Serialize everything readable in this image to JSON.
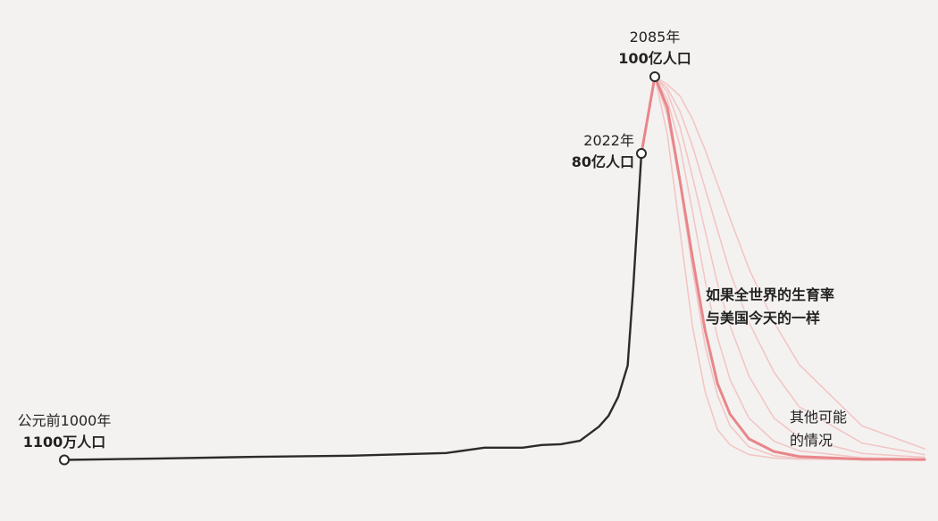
{
  "chart_data": {
    "type": "line",
    "xlim": [
      -1000,
      2300
    ],
    "ylim": [
      0,
      100
    ],
    "series": [
      {
        "color": "#f2c6c6",
        "x": [
          2085,
          2095,
          2105,
          2115,
          2125,
          2135,
          2145,
          2160,
          2180,
          2200,
          2250,
          2300
        ],
        "values": [
          100,
          85,
          60,
          35,
          18,
          8,
          4,
          1.5,
          0.6,
          0.3,
          0.2,
          0.2
        ]
      },
      {
        "color": "#f2c6c6",
        "x": [
          2085,
          2095,
          2105,
          2115,
          2125,
          2135,
          2145,
          2160,
          2180,
          2200,
          2250,
          2300
        ],
        "values": [
          100,
          90,
          72,
          50,
          30,
          17,
          9,
          3.5,
          1.2,
          0.5,
          0.3,
          0.2
        ]
      },
      {
        "color": "#f2c6c6",
        "x": [
          2085,
          2095,
          2105,
          2115,
          2125,
          2135,
          2145,
          2160,
          2180,
          2200,
          2250,
          2300
        ],
        "values": [
          100,
          94,
          82,
          65,
          47,
          32,
          21,
          11,
          5,
          2.5,
          0.7,
          0.4
        ]
      },
      {
        "color": "#f2c6c6",
        "x": [
          2085,
          2095,
          2105,
          2115,
          2125,
          2135,
          2145,
          2160,
          2180,
          2200,
          2250,
          2300
        ],
        "values": [
          100,
          96,
          87,
          74,
          60,
          46,
          35,
          22,
          11,
          6,
          1.8,
          0.8
        ]
      },
      {
        "color": "#f2c6c6",
        "x": [
          2085,
          2095,
          2105,
          2115,
          2125,
          2135,
          2145,
          2160,
          2180,
          2200,
          2250,
          2300
        ],
        "values": [
          100,
          97,
          91,
          82,
          71,
          60,
          49,
          36,
          23,
          14,
          4.5,
          1.5
        ]
      },
      {
        "name": "其他可能的情况",
        "color": "#f2c6c6",
        "x": [
          2085,
          2095,
          2105,
          2115,
          2125,
          2135,
          2145,
          2160,
          2180,
          2200,
          2250,
          2300
        ],
        "values": [
          100,
          98,
          95,
          89,
          81,
          72,
          63,
          50,
          36,
          25,
          9,
          3
        ]
      },
      {
        "name": "如果全世界的生育率与美国今天的一样",
        "color": "#e8868a",
        "x": [
          2022,
          2085,
          2095,
          2105,
          2115,
          2125,
          2135,
          2145,
          2160,
          2180,
          2200,
          2250,
          2300
        ],
        "values": [
          80,
          100,
          92,
          73,
          53,
          34,
          20,
          12,
          5.6,
          2.3,
          1,
          0.3,
          0.2
        ]
      },
      {
        "color": "#2b2b2b",
        "x": [
          -1000,
          -500,
          0,
          500,
          1000,
          1200,
          1400,
          1500,
          1600,
          1700,
          1800,
          1850,
          1900,
          1950,
          1980,
          2000,
          2022
        ],
        "values": [
          0.11,
          0.5,
          0.9,
          1.2,
          1.9,
          3.3,
          3.3,
          4,
          4.2,
          5.1,
          8.8,
          11.6,
          16.5,
          24.7,
          45.6,
          62,
          80
        ]
      }
    ],
    "annotations": [
      {
        "x": -1000,
        "y": 0.11,
        "label": "公元前1000年",
        "value_label": "1100万人口"
      },
      {
        "x": 2022,
        "y": 80,
        "label": "2022年",
        "value_label": "80亿人口"
      },
      {
        "x": 2085,
        "y": 100,
        "label": "2085年",
        "value_label": "100亿人口"
      }
    ]
  }
}
